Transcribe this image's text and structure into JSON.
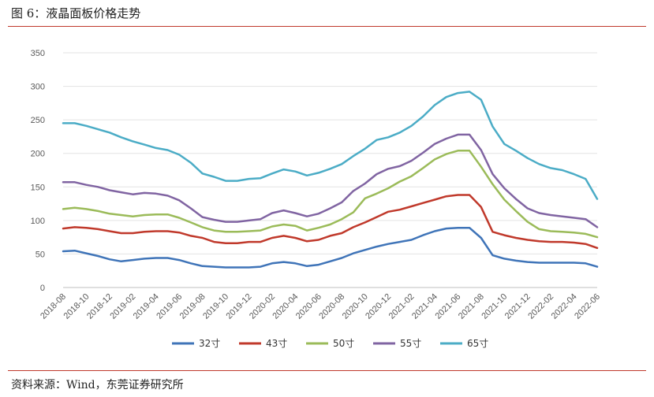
{
  "figure": {
    "title": "图 6：液晶面板价格走势",
    "source": "资料来源：Wind，东莞证券研究所"
  },
  "chart_data": {
    "type": "line",
    "ylim": [
      0,
      350
    ],
    "yticks": [
      0,
      50,
      100,
      150,
      200,
      250,
      300,
      350
    ],
    "grid": "horizontal",
    "legend": "bottom",
    "x": [
      "2018-08",
      "2018-09",
      "2018-10",
      "2018-11",
      "2018-12",
      "2019-01",
      "2019-02",
      "2019-03",
      "2019-04",
      "2019-05",
      "2019-06",
      "2019-07",
      "2019-08",
      "2019-09",
      "2019-10",
      "2019-11",
      "2019-12",
      "2020-01",
      "2020-02",
      "2020-03",
      "2020-04",
      "2020-05",
      "2020-06",
      "2020-07",
      "2020-08",
      "2020-09",
      "2020-10",
      "2020-11",
      "2020-12",
      "2021-01",
      "2021-02",
      "2021-03",
      "2021-04",
      "2021-05",
      "2021-06",
      "2021-07",
      "2021-08",
      "2021-09",
      "2021-10",
      "2021-11",
      "2021-12",
      "2022-01",
      "2022-02",
      "2022-03",
      "2022-04",
      "2022-05",
      "2022-06"
    ],
    "xtick_labels": [
      "2018-08",
      "2018-10",
      "2018-12",
      "2019-02",
      "2019-04",
      "2019-06",
      "2019-08",
      "2019-10",
      "2019-12",
      "2020-02",
      "2020-04",
      "2020-06",
      "2020-08",
      "2020-10",
      "2020-12",
      "2021-02",
      "2021-04",
      "2021-06",
      "2021-08",
      "2021-10",
      "2021-12",
      "2022-02",
      "2022-04",
      "2022-06"
    ],
    "series": [
      {
        "name": "32寸",
        "color": "#3f74b8",
        "values": [
          54,
          55,
          51,
          47,
          42,
          39,
          41,
          43,
          44,
          44,
          41,
          36,
          32,
          31,
          30,
          30,
          30,
          31,
          36,
          38,
          36,
          32,
          34,
          39,
          44,
          51,
          56,
          61,
          65,
          68,
          71,
          78,
          84,
          88,
          89,
          89,
          74,
          48,
          43,
          40,
          38,
          37,
          37,
          37,
          37,
          36,
          31
        ]
      },
      {
        "name": "43寸",
        "color": "#c0392b",
        "values": [
          88,
          90,
          89,
          87,
          84,
          81,
          81,
          83,
          84,
          84,
          82,
          77,
          74,
          68,
          66,
          66,
          68,
          68,
          74,
          77,
          74,
          69,
          71,
          77,
          81,
          90,
          97,
          105,
          113,
          116,
          121,
          126,
          131,
          136,
          138,
          138,
          120,
          83,
          78,
          74,
          71,
          69,
          68,
          68,
          67,
          65,
          59
        ]
      },
      {
        "name": "50寸",
        "color": "#9bbb59",
        "values": [
          117,
          119,
          117,
          114,
          110,
          108,
          106,
          108,
          109,
          109,
          104,
          97,
          90,
          85,
          83,
          83,
          84,
          85,
          91,
          94,
          92,
          85,
          89,
          94,
          102,
          112,
          133,
          140,
          148,
          158,
          166,
          178,
          191,
          199,
          204,
          204,
          180,
          154,
          131,
          114,
          98,
          87,
          84,
          83,
          82,
          80,
          75
        ]
      },
      {
        "name": "55寸",
        "color": "#8064a2",
        "values": [
          157,
          157,
          153,
          150,
          145,
          142,
          139,
          141,
          140,
          137,
          130,
          118,
          105,
          101,
          98,
          98,
          100,
          102,
          111,
          115,
          111,
          106,
          110,
          118,
          127,
          144,
          155,
          169,
          177,
          181,
          189,
          201,
          214,
          222,
          228,
          228,
          205,
          169,
          148,
          132,
          118,
          111,
          108,
          106,
          104,
          102,
          90
        ]
      },
      {
        "name": "65寸",
        "color": "#4bacc6",
        "values": [
          245,
          245,
          241,
          236,
          231,
          224,
          218,
          213,
          208,
          205,
          198,
          186,
          170,
          165,
          159,
          159,
          162,
          163,
          170,
          176,
          173,
          167,
          171,
          177,
          184,
          196,
          207,
          220,
          224,
          231,
          241,
          255,
          272,
          284,
          290,
          292,
          280,
          240,
          214,
          204,
          193,
          184,
          178,
          175,
          169,
          162,
          132
        ]
      }
    ]
  }
}
